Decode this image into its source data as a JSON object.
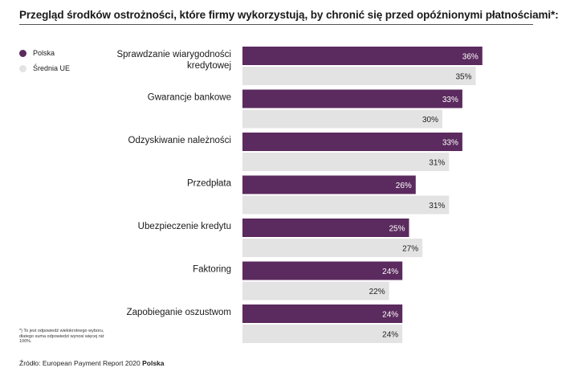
{
  "chart_data": {
    "type": "bar",
    "title": "Przegląd środków ostrożności, które firmy wykorzystują, by chronić się przed opóźnionymi płatnościami*:",
    "categories": [
      [
        "Sprawdzanie wiarygodności",
        "kredytowej"
      ],
      [
        "Gwarancje bankowe"
      ],
      [
        "Odzyskiwanie należności"
      ],
      [
        "Przedpłata"
      ],
      [
        "Ubezpieczenie kredytu"
      ],
      [
        "Faktoring"
      ],
      [
        "Zapobieganie oszustwom"
      ]
    ],
    "series": [
      {
        "name": "Polska",
        "values": [
          36,
          33,
          33,
          26,
          25,
          24,
          24
        ],
        "labels": [
          "36%",
          "33%",
          "33%",
          "26%",
          "25%",
          "24%",
          "24%"
        ],
        "color": "#5b2a5e",
        "label_color": "#ffffff"
      },
      {
        "name": "Średnia UE",
        "values": [
          35,
          30,
          31,
          31,
          27,
          22,
          24
        ],
        "labels": [
          "35%",
          "30%",
          "31%",
          "31%",
          "27%",
          "22%",
          "24%"
        ],
        "color": "#e3e3e3",
        "label_color": "#222222"
      }
    ],
    "orientation": "horizontal",
    "xlim": [
      0,
      36
    ],
    "legend_position": "top-left"
  },
  "footnote": "*) To jest odpowiedź wielokrotnego wyboru, dlatego suma odpowiedzi wynosi więcej niż 100%.",
  "source": {
    "prefix": "Źródło: European Payment Report 2020 ",
    "bold": "Polska"
  }
}
